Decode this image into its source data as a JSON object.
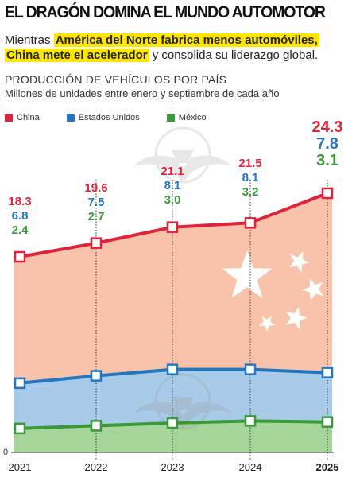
{
  "header": {
    "title": "EL DRAGÓN DOMINA EL MUNDO AUTOMOTOR",
    "sub_pre": "Mientras ",
    "sub_hl1": "América del Norte fabrica menos automóviles,",
    "sub_hl2": "China mete el acelerador",
    "sub_post": " y consolida su liderazgo global."
  },
  "colors": {
    "china": "#e0223a",
    "usa": "#2277c0",
    "mexico": "#3a9a3a",
    "china_fill": "#f9c3ab",
    "usa_fill": "#a8cbea",
    "mexico_fill": "#a6d59a",
    "highlight": "#ffe600"
  },
  "chart_data": {
    "type": "area",
    "title": "PRODUCCIÓN DE VEHÍCULOS POR PAÍS",
    "subtitle": "Millones de unidades entre enero y septiembre de cada año",
    "categories": [
      "2021",
      "2022",
      "2023",
      "2024",
      "2025"
    ],
    "series": [
      {
        "name": "China",
        "values": [
          18.3,
          19.6,
          21.1,
          21.5,
          24.3
        ]
      },
      {
        "name": "Estados Unidos",
        "values": [
          6.8,
          7.5,
          8.1,
          8.1,
          7.8
        ]
      },
      {
        "name": "México",
        "values": [
          2.4,
          2.7,
          3.0,
          3.2,
          3.1
        ]
      }
    ],
    "value_labels": [
      [
        "18.3",
        "19.6",
        "21.1",
        "21.5",
        "24.3"
      ],
      [
        "6.8",
        "7.5",
        "8.1",
        "8.1",
        "7.8"
      ],
      [
        "2.4",
        "2.7",
        "3.0",
        "3.2",
        "3.1"
      ]
    ],
    "y_zero_label": "0",
    "highlight_category": "2025",
    "legend_position": "top-left",
    "grid": false
  }
}
